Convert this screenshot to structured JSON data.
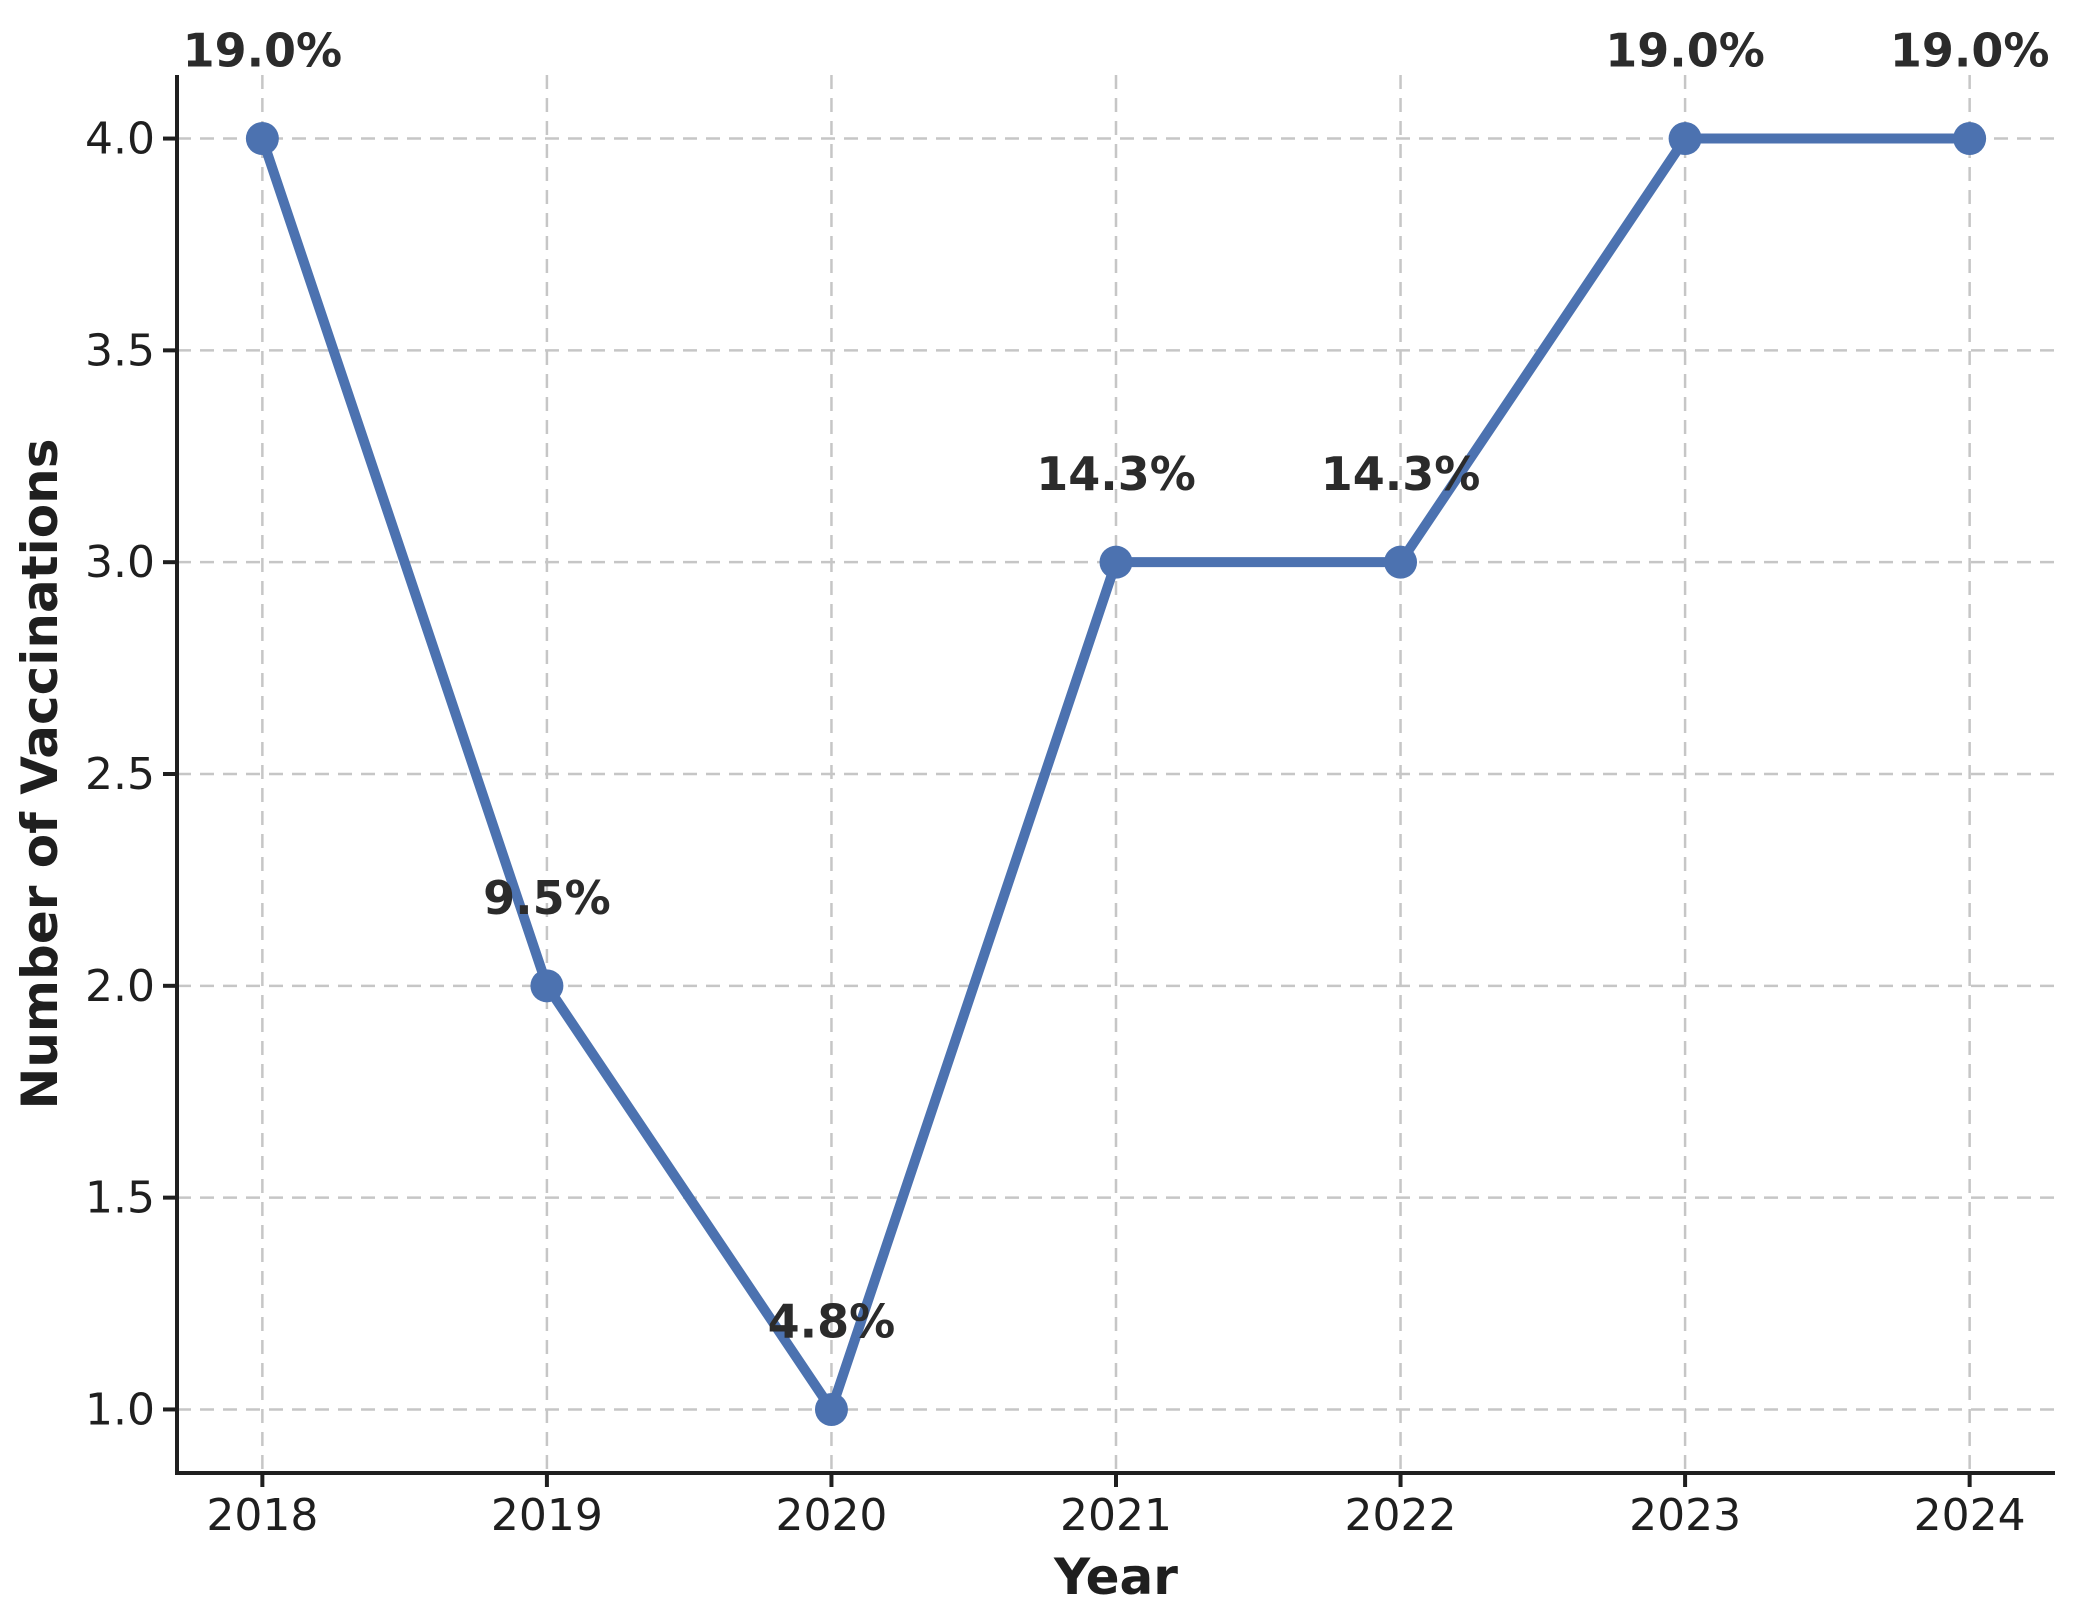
{
  "chart_data": {
    "type": "line",
    "title": "",
    "xlabel": "Year",
    "ylabel": "Number of Vaccinations",
    "x": [
      2018,
      2019,
      2020,
      2021,
      2022,
      2023,
      2024
    ],
    "x_tick_labels": [
      "2018",
      "2019",
      "2020",
      "2021",
      "2022",
      "2023",
      "2024"
    ],
    "values": [
      4,
      2,
      1,
      3,
      3,
      4,
      4
    ],
    "point_labels": [
      "19.0%",
      "9.5%",
      "4.8%",
      "14.3%",
      "14.3%",
      "19.0%",
      "19.0%"
    ],
    "yticks": [
      1.0,
      1.5,
      2.0,
      2.5,
      3.0,
      3.5,
      4.0
    ],
    "ytick_labels": [
      "1.0",
      "1.5",
      "2.0",
      "2.5",
      "3.0",
      "3.5",
      "4.0"
    ],
    "xlim": [
      2017.7,
      2024.3
    ],
    "ylim": [
      0.85,
      4.15
    ],
    "grid": true,
    "grid_style": "dashed",
    "legend": "none",
    "line_color": "#4C72B0",
    "marker": "circle",
    "grid_color": "#c6c6c6",
    "spine_color": "#1f1f1f",
    "tick_text_color": "#1f1f1f",
    "annotation_color": "#2b2b2b",
    "background_color": "#ffffff"
  }
}
